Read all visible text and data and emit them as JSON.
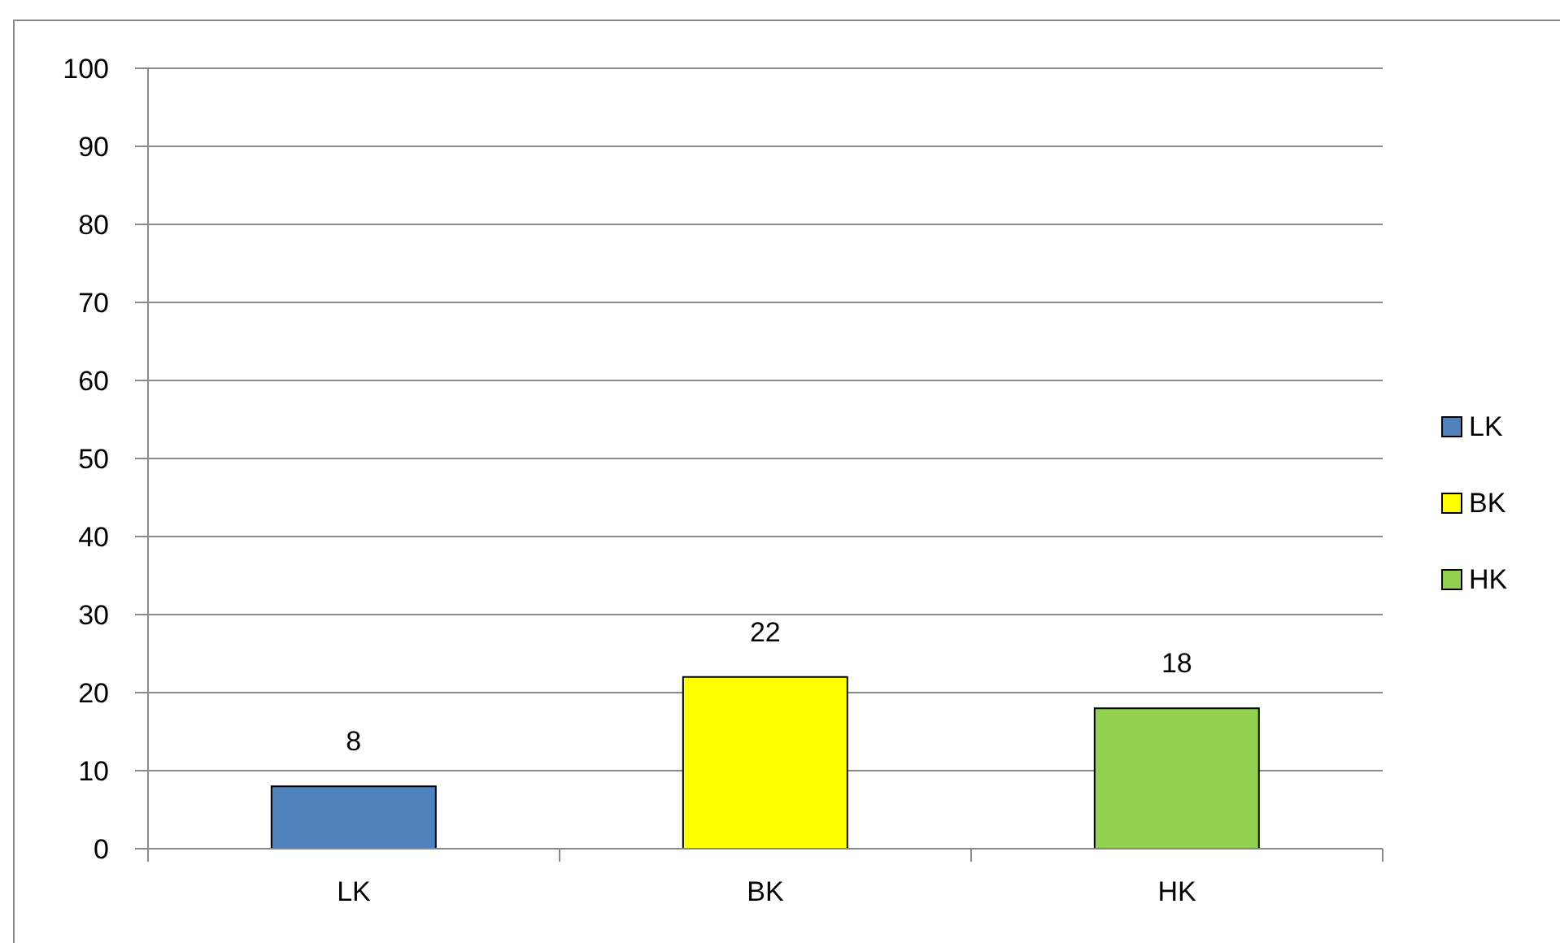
{
  "chart_data": {
    "type": "bar",
    "categories": [
      "LK",
      "BK",
      "HK"
    ],
    "stacked": true,
    "series": [
      {
        "name": "LK",
        "color": "#4f81bd",
        "values": [
          8,
          null,
          null
        ]
      },
      {
        "name": "BK",
        "color": "#ffff00",
        "values": [
          null,
          22,
          null
        ]
      },
      {
        "name": "HK",
        "color": "#92d050",
        "values": [
          null,
          null,
          18
        ]
      }
    ],
    "ylim": [
      0,
      100
    ],
    "yticks": [
      0,
      10,
      20,
      30,
      40,
      50,
      60,
      70,
      80,
      90,
      100
    ],
    "grid": "y",
    "legend": "right",
    "data_labels": true
  }
}
